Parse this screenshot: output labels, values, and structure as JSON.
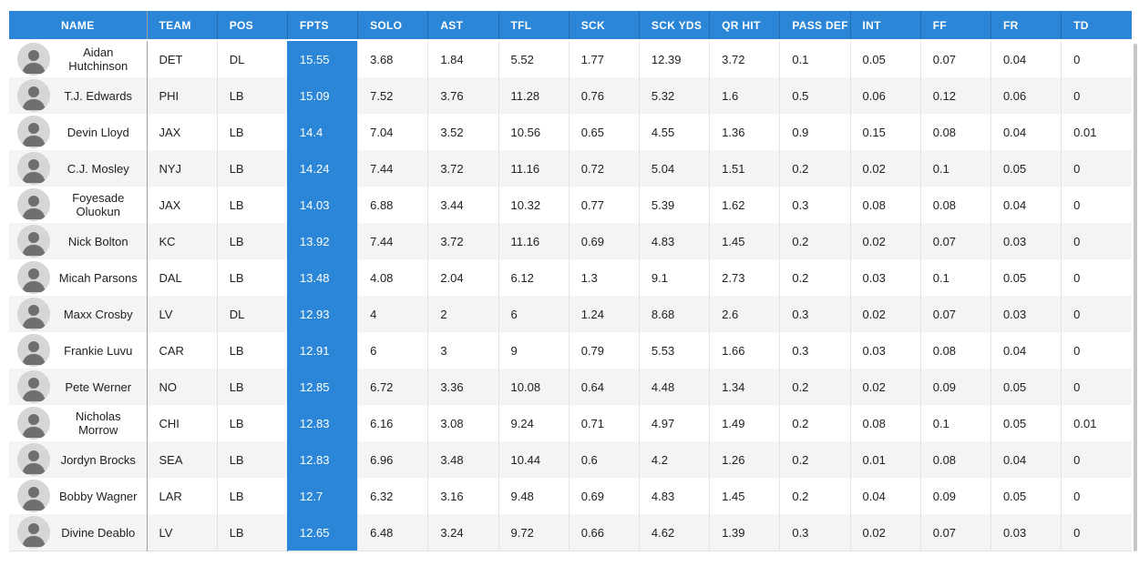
{
  "table_title": "defensive-player-projections",
  "colors": {
    "header_blue": "#2b86d8",
    "fpts_highlight_blue": "#2b86d8",
    "row_stripe": "#f4f4f4",
    "column_divider": "#e4e4e4",
    "name_column_divider": "#9e9e9e",
    "header_text": "#ffffff",
    "cell_text": "#212121"
  },
  "sorted_column": "FPTS",
  "columns": [
    {
      "key": "name",
      "label": "NAME"
    },
    {
      "key": "team",
      "label": "TEAM"
    },
    {
      "key": "pos",
      "label": "POS"
    },
    {
      "key": "fpts",
      "label": "FPTS"
    },
    {
      "key": "solo",
      "label": "SOLO"
    },
    {
      "key": "ast",
      "label": "AST"
    },
    {
      "key": "tfl",
      "label": "TFL"
    },
    {
      "key": "sck",
      "label": "SCK"
    },
    {
      "key": "sck_yds",
      "label": "SCK YDS"
    },
    {
      "key": "qr_hit",
      "label": "QR HIT"
    },
    {
      "key": "pass_def",
      "label": "PASS DEF"
    },
    {
      "key": "int",
      "label": "INT"
    },
    {
      "key": "ff",
      "label": "FF"
    },
    {
      "key": "fr",
      "label": "FR"
    },
    {
      "key": "td",
      "label": "TD"
    }
  ],
  "players": [
    {
      "name": "Aidan Hutchinson",
      "team": "DET",
      "pos": "DL",
      "fpts": "15.55",
      "solo": "3.68",
      "ast": "1.84",
      "tfl": "5.52",
      "sck": "1.77",
      "sck_yds": "12.39",
      "qr_hit": "3.72",
      "pass_def": "0.1",
      "int": "0.05",
      "ff": "0.07",
      "fr": "0.04",
      "td": "0"
    },
    {
      "name": "T.J. Edwards",
      "team": "PHI",
      "pos": "LB",
      "fpts": "15.09",
      "solo": "7.52",
      "ast": "3.76",
      "tfl": "11.28",
      "sck": "0.76",
      "sck_yds": "5.32",
      "qr_hit": "1.6",
      "pass_def": "0.5",
      "int": "0.06",
      "ff": "0.12",
      "fr": "0.06",
      "td": "0"
    },
    {
      "name": "Devin Lloyd",
      "team": "JAX",
      "pos": "LB",
      "fpts": "14.4",
      "solo": "7.04",
      "ast": "3.52",
      "tfl": "10.56",
      "sck": "0.65",
      "sck_yds": "4.55",
      "qr_hit": "1.36",
      "pass_def": "0.9",
      "int": "0.15",
      "ff": "0.08",
      "fr": "0.04",
      "td": "0.01"
    },
    {
      "name": "C.J. Mosley",
      "team": "NYJ",
      "pos": "LB",
      "fpts": "14.24",
      "solo": "7.44",
      "ast": "3.72",
      "tfl": "11.16",
      "sck": "0.72",
      "sck_yds": "5.04",
      "qr_hit": "1.51",
      "pass_def": "0.2",
      "int": "0.02",
      "ff": "0.1",
      "fr": "0.05",
      "td": "0"
    },
    {
      "name": "Foyesade Oluokun",
      "team": "JAX",
      "pos": "LB",
      "fpts": "14.03",
      "solo": "6.88",
      "ast": "3.44",
      "tfl": "10.32",
      "sck": "0.77",
      "sck_yds": "5.39",
      "qr_hit": "1.62",
      "pass_def": "0.3",
      "int": "0.08",
      "ff": "0.08",
      "fr": "0.04",
      "td": "0"
    },
    {
      "name": "Nick Bolton",
      "team": "KC",
      "pos": "LB",
      "fpts": "13.92",
      "solo": "7.44",
      "ast": "3.72",
      "tfl": "11.16",
      "sck": "0.69",
      "sck_yds": "4.83",
      "qr_hit": "1.45",
      "pass_def": "0.2",
      "int": "0.02",
      "ff": "0.07",
      "fr": "0.03",
      "td": "0"
    },
    {
      "name": "Micah Parsons",
      "team": "DAL",
      "pos": "LB",
      "fpts": "13.48",
      "solo": "4.08",
      "ast": "2.04",
      "tfl": "6.12",
      "sck": "1.3",
      "sck_yds": "9.1",
      "qr_hit": "2.73",
      "pass_def": "0.2",
      "int": "0.03",
      "ff": "0.1",
      "fr": "0.05",
      "td": "0"
    },
    {
      "name": "Maxx Crosby",
      "team": "LV",
      "pos": "DL",
      "fpts": "12.93",
      "solo": "4",
      "ast": "2",
      "tfl": "6",
      "sck": "1.24",
      "sck_yds": "8.68",
      "qr_hit": "2.6",
      "pass_def": "0.3",
      "int": "0.02",
      "ff": "0.07",
      "fr": "0.03",
      "td": "0"
    },
    {
      "name": "Frankie Luvu",
      "team": "CAR",
      "pos": "LB",
      "fpts": "12.91",
      "solo": "6",
      "ast": "3",
      "tfl": "9",
      "sck": "0.79",
      "sck_yds": "5.53",
      "qr_hit": "1.66",
      "pass_def": "0.3",
      "int": "0.03",
      "ff": "0.08",
      "fr": "0.04",
      "td": "0"
    },
    {
      "name": "Pete Werner",
      "team": "NO",
      "pos": "LB",
      "fpts": "12.85",
      "solo": "6.72",
      "ast": "3.36",
      "tfl": "10.08",
      "sck": "0.64",
      "sck_yds": "4.48",
      "qr_hit": "1.34",
      "pass_def": "0.2",
      "int": "0.02",
      "ff": "0.09",
      "fr": "0.05",
      "td": "0"
    },
    {
      "name": "Nicholas Morrow",
      "team": "CHI",
      "pos": "LB",
      "fpts": "12.83",
      "solo": "6.16",
      "ast": "3.08",
      "tfl": "9.24",
      "sck": "0.71",
      "sck_yds": "4.97",
      "qr_hit": "1.49",
      "pass_def": "0.2",
      "int": "0.08",
      "ff": "0.1",
      "fr": "0.05",
      "td": "0.01"
    },
    {
      "name": "Jordyn Brocks",
      "team": "SEA",
      "pos": "LB",
      "fpts": "12.83",
      "solo": "6.96",
      "ast": "3.48",
      "tfl": "10.44",
      "sck": "0.6",
      "sck_yds": "4.2",
      "qr_hit": "1.26",
      "pass_def": "0.2",
      "int": "0.01",
      "ff": "0.08",
      "fr": "0.04",
      "td": "0"
    },
    {
      "name": "Bobby Wagner",
      "team": "LAR",
      "pos": "LB",
      "fpts": "12.7",
      "solo": "6.32",
      "ast": "3.16",
      "tfl": "9.48",
      "sck": "0.69",
      "sck_yds": "4.83",
      "qr_hit": "1.45",
      "pass_def": "0.2",
      "int": "0.04",
      "ff": "0.09",
      "fr": "0.05",
      "td": "0"
    },
    {
      "name": "Divine Deablo",
      "team": "LV",
      "pos": "LB",
      "fpts": "12.65",
      "solo": "6.48",
      "ast": "3.24",
      "tfl": "9.72",
      "sck": "0.66",
      "sck_yds": "4.62",
      "qr_hit": "1.39",
      "pass_def": "0.3",
      "int": "0.02",
      "ff": "0.07",
      "fr": "0.03",
      "td": "0"
    }
  ]
}
